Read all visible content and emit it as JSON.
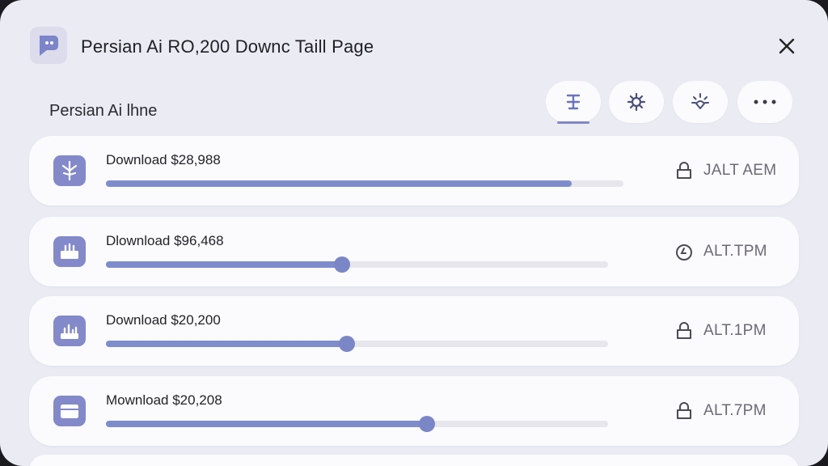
{
  "window": {
    "title": "Persian Ai RO,200 Downc Taill Page"
  },
  "section": {
    "title": "Persian Ai lhne"
  },
  "toolbar": {
    "buttons": [
      {
        "icon": "text-cursor-icon",
        "active": true
      },
      {
        "icon": "gear-icon",
        "active": false
      },
      {
        "icon": "sparkle-icon",
        "active": false
      },
      {
        "icon": "more-icon",
        "active": false
      }
    ]
  },
  "downloads": [
    {
      "label": "Download $28,988",
      "progress": 0.9,
      "icon": "leaf-icon",
      "status": "JALT AEM",
      "status_icon": "lock-icon",
      "has_knob": false
    },
    {
      "label": "Dlownload $96,468",
      "progress": 0.47,
      "icon": "upload-box-icon",
      "status": "ALT.TPM",
      "status_icon": "clock-icon",
      "has_knob": true
    },
    {
      "label": "Download $20,200",
      "progress": 0.48,
      "icon": "chart-box-icon",
      "status": "ALT.1PM",
      "status_icon": "lock-icon",
      "has_knob": true
    },
    {
      "label": "Mownload $20,208",
      "progress": 0.64,
      "icon": "tray-icon",
      "status": "ALT.7PM",
      "status_icon": "lock-icon",
      "has_knob": true
    }
  ],
  "colors": {
    "accent": "#7f8ccc",
    "icon_bg": "#8389c9",
    "window_bg": "#ebebf3",
    "card_bg": "#fbfbfe"
  }
}
